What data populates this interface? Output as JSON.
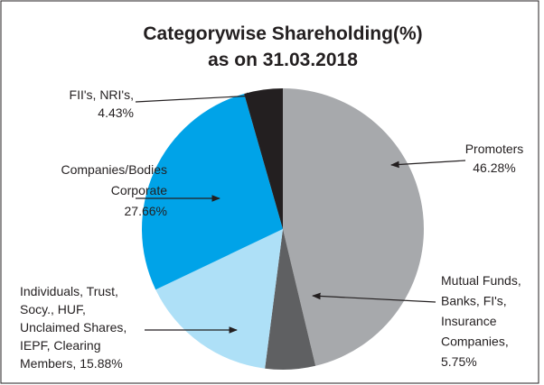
{
  "chart_data": {
    "type": "pie",
    "title": [
      "Categorywise Shareholding(%)",
      "as on 31.03.2018"
    ],
    "categories": [
      [
        "Promoters"
      ],
      [
        "Mutual Funds,",
        "Banks, FI's,",
        "Insurance",
        "Companies,"
      ],
      [
        "Individuals, Trust,",
        "Socy., HUF,",
        "Unclaimed Shares,",
        "IEPF, Clearing",
        "Members,"
      ],
      [
        "Companies/Bodies",
        "Corporate"
      ],
      [
        "FII's, NRI's,"
      ]
    ],
    "values": [
      46.28,
      5.75,
      15.88,
      27.66,
      4.43
    ],
    "value_labels": [
      "46.28%",
      "5.75%",
      "15.88%",
      "27.66%",
      "4.43%"
    ],
    "colors": [
      "#a7a9ac",
      "#5f6062",
      "#aee0f7",
      "#00a3e8",
      "#231f20"
    ]
  }
}
